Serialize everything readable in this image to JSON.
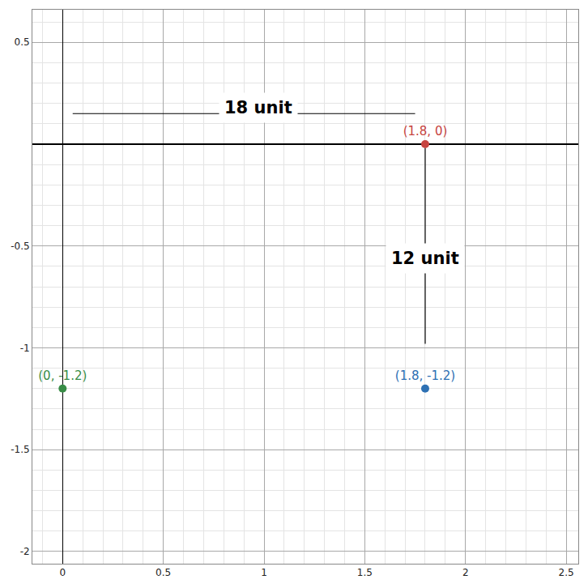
{
  "chart_data": {
    "type": "scatter",
    "x": [
      1.8,
      0,
      1.8
    ],
    "values": [
      0,
      -1.2,
      -1.2
    ],
    "value_labels": [
      "(1.8, 0)",
      "(0, -1.2)",
      "(1.8, -1.2)"
    ],
    "colors": [
      "#c74440",
      "#388c46",
      "#2d70b3"
    ],
    "data_labels": true,
    "marker": "circle",
    "xlim": [
      -0.15,
      2.56
    ],
    "ylim": [
      -2.06,
      0.66
    ],
    "xticks": [
      0,
      0.5,
      1,
      1.5,
      2,
      2.5
    ],
    "yticks": [
      -2,
      -1.5,
      -1,
      -0.5,
      0.5
    ],
    "grid": true,
    "annotations": [
      {
        "text": "18 unit",
        "x": 0.97,
        "y": 0.18,
        "x0": 0.05,
        "x1": 1.75,
        "y0": 0.15,
        "y1": 0.15
      },
      {
        "text": "12 unit",
        "x": 1.8,
        "y": -0.56,
        "x0": 1.8,
        "x1": 1.8,
        "y0": -0.02,
        "y1": -0.98
      }
    ]
  }
}
